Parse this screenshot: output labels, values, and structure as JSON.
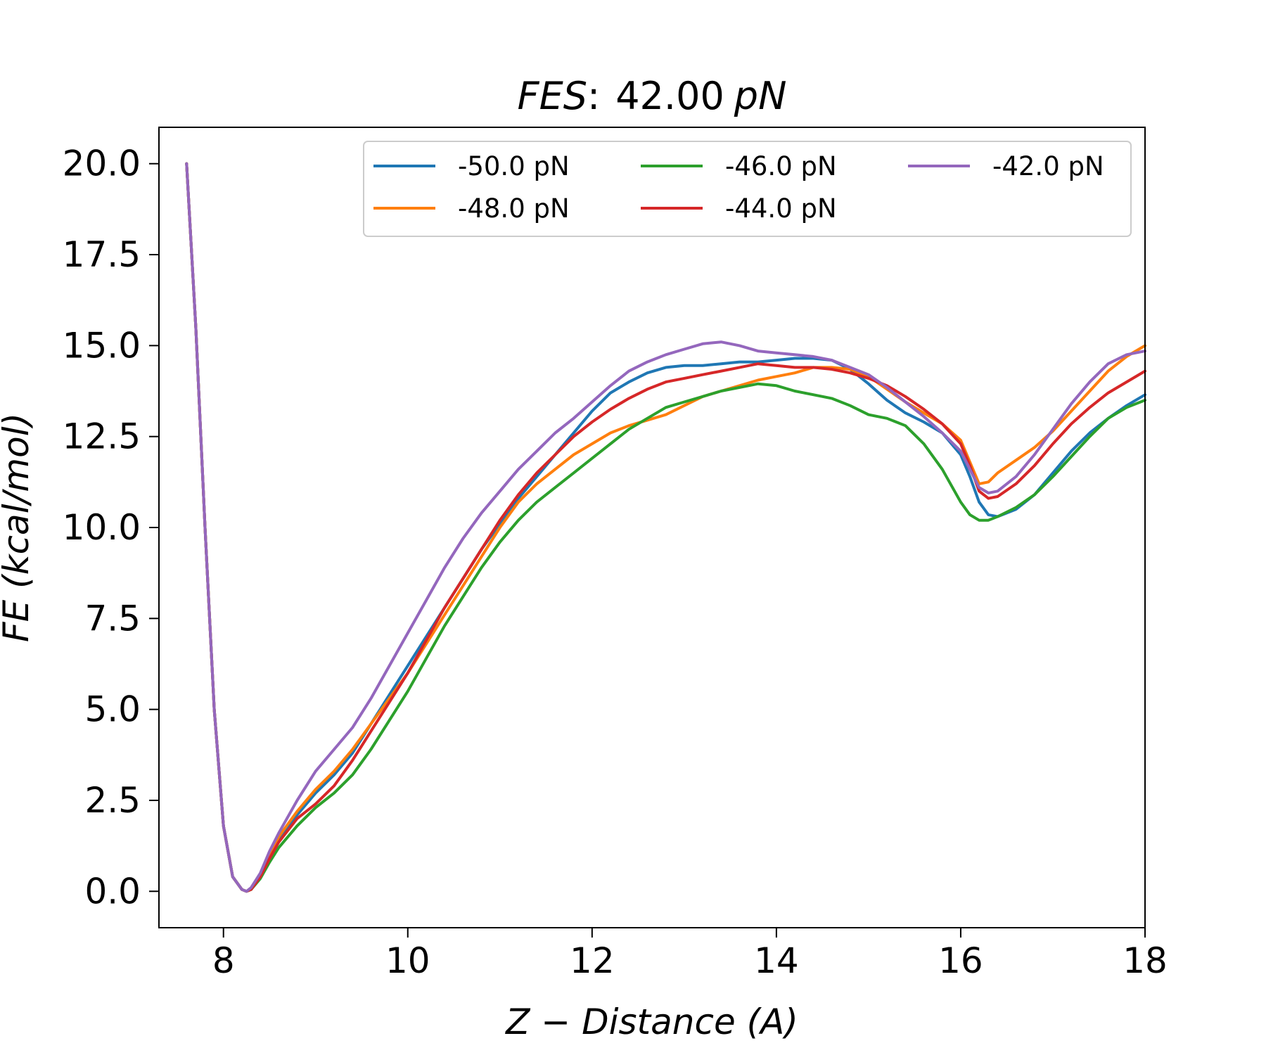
{
  "chart_data": {
    "type": "line",
    "title_parts": {
      "italic_prefix": "FES",
      "colon": ":",
      "number": "42.00",
      "italic_unit": "pN"
    },
    "xlabel": "Z − Distance (A)",
    "ylabel": "FE (kcal/mol)",
    "xlim": [
      7.3,
      18.0
    ],
    "ylim": [
      -1.0,
      21.0
    ],
    "xticks": [
      8,
      10,
      12,
      14,
      16,
      18
    ],
    "xtick_labels": [
      "8",
      "10",
      "12",
      "14",
      "16",
      "18"
    ],
    "yticks": [
      0.0,
      2.5,
      5.0,
      7.5,
      10.0,
      12.5,
      15.0,
      17.5,
      20.0
    ],
    "ytick_labels": [
      "0.0",
      "2.5",
      "5.0",
      "7.5",
      "10.0",
      "12.5",
      "15.0",
      "17.5",
      "20.0"
    ],
    "grid": false,
    "legend_position": "top-right",
    "legend_columns": 3,
    "series": [
      {
        "name": "-50.0 pN",
        "color": "#1f77b4",
        "x": [
          7.6,
          7.7,
          7.8,
          7.9,
          8.0,
          8.1,
          8.2,
          8.25,
          8.3,
          8.4,
          8.5,
          8.6,
          8.8,
          9.0,
          9.2,
          9.4,
          9.6,
          9.8,
          10.0,
          10.2,
          10.4,
          10.6,
          10.8,
          11.0,
          11.2,
          11.4,
          11.6,
          11.8,
          12.0,
          12.2,
          12.4,
          12.6,
          12.8,
          13.0,
          13.2,
          13.4,
          13.6,
          13.8,
          14.0,
          14.2,
          14.4,
          14.6,
          14.8,
          15.0,
          15.2,
          15.4,
          15.6,
          15.8,
          16.0,
          16.1,
          16.2,
          16.3,
          16.4,
          16.6,
          16.8,
          17.0,
          17.2,
          17.4,
          17.6,
          17.8,
          18.0
        ],
        "y": [
          20.0,
          15.5,
          10.0,
          5.0,
          1.8,
          0.4,
          0.05,
          0.0,
          0.05,
          0.4,
          0.9,
          1.4,
          2.1,
          2.7,
          3.2,
          3.8,
          4.6,
          5.4,
          6.2,
          7.0,
          7.8,
          8.6,
          9.4,
          10.1,
          10.8,
          11.4,
          12.0,
          12.6,
          13.2,
          13.7,
          14.0,
          14.25,
          14.4,
          14.45,
          14.45,
          14.5,
          14.55,
          14.55,
          14.6,
          14.65,
          14.65,
          14.6,
          14.35,
          13.95,
          13.5,
          13.15,
          12.9,
          12.6,
          12.0,
          11.4,
          10.7,
          10.35,
          10.3,
          10.5,
          10.9,
          11.5,
          12.1,
          12.6,
          13.0,
          13.35,
          13.65
        ]
      },
      {
        "name": "-48.0 pN",
        "color": "#ff7f0e",
        "x": [
          7.6,
          7.7,
          7.8,
          7.9,
          8.0,
          8.1,
          8.2,
          8.25,
          8.3,
          8.4,
          8.5,
          8.6,
          8.8,
          9.0,
          9.2,
          9.4,
          9.6,
          9.8,
          10.0,
          10.2,
          10.4,
          10.6,
          10.8,
          11.0,
          11.2,
          11.4,
          11.6,
          11.8,
          12.0,
          12.2,
          12.4,
          12.6,
          12.8,
          13.0,
          13.2,
          13.4,
          13.6,
          13.8,
          14.0,
          14.2,
          14.4,
          14.6,
          14.8,
          15.0,
          15.2,
          15.4,
          15.6,
          15.8,
          16.0,
          16.1,
          16.2,
          16.3,
          16.4,
          16.6,
          16.8,
          17.0,
          17.2,
          17.4,
          17.6,
          17.8,
          18.0
        ],
        "y": [
          20.0,
          15.5,
          10.0,
          5.0,
          1.8,
          0.4,
          0.05,
          0.0,
          0.05,
          0.45,
          0.95,
          1.5,
          2.2,
          2.8,
          3.3,
          3.9,
          4.6,
          5.3,
          6.0,
          6.8,
          7.6,
          8.4,
          9.2,
          10.0,
          10.7,
          11.2,
          11.6,
          12.0,
          12.3,
          12.6,
          12.8,
          12.95,
          13.1,
          13.35,
          13.6,
          13.75,
          13.9,
          14.05,
          14.15,
          14.25,
          14.4,
          14.4,
          14.35,
          14.15,
          13.8,
          13.45,
          13.15,
          12.85,
          12.4,
          11.8,
          11.2,
          11.25,
          11.5,
          11.85,
          12.2,
          12.65,
          13.2,
          13.75,
          14.3,
          14.7,
          15.0
        ]
      },
      {
        "name": "-46.0 pN",
        "color": "#2ca02c",
        "x": [
          7.6,
          7.7,
          7.8,
          7.9,
          8.0,
          8.1,
          8.2,
          8.25,
          8.3,
          8.4,
          8.5,
          8.6,
          8.8,
          9.0,
          9.2,
          9.4,
          9.6,
          9.8,
          10.0,
          10.2,
          10.4,
          10.6,
          10.8,
          11.0,
          11.2,
          11.4,
          11.6,
          11.8,
          12.0,
          12.2,
          12.4,
          12.6,
          12.8,
          13.0,
          13.2,
          13.4,
          13.6,
          13.8,
          14.0,
          14.2,
          14.4,
          14.6,
          14.8,
          15.0,
          15.2,
          15.4,
          15.6,
          15.8,
          16.0,
          16.1,
          16.2,
          16.3,
          16.4,
          16.6,
          16.8,
          17.0,
          17.2,
          17.4,
          17.6,
          17.8,
          18.0
        ],
        "y": [
          20.0,
          15.5,
          10.0,
          5.0,
          1.8,
          0.4,
          0.05,
          0.0,
          0.05,
          0.35,
          0.8,
          1.2,
          1.8,
          2.3,
          2.7,
          3.2,
          3.9,
          4.7,
          5.5,
          6.4,
          7.3,
          8.1,
          8.9,
          9.6,
          10.2,
          10.7,
          11.1,
          11.5,
          11.9,
          12.3,
          12.7,
          13.0,
          13.3,
          13.45,
          13.6,
          13.75,
          13.85,
          13.95,
          13.9,
          13.75,
          13.65,
          13.55,
          13.35,
          13.1,
          13.0,
          12.8,
          12.3,
          11.6,
          10.7,
          10.35,
          10.2,
          10.2,
          10.3,
          10.55,
          10.9,
          11.4,
          11.95,
          12.5,
          13.0,
          13.3,
          13.5
        ]
      },
      {
        "name": "-44.0 pN",
        "color": "#d62728",
        "x": [
          7.6,
          7.7,
          7.8,
          7.9,
          8.0,
          8.1,
          8.2,
          8.25,
          8.3,
          8.4,
          8.5,
          8.6,
          8.8,
          9.0,
          9.2,
          9.4,
          9.6,
          9.8,
          10.0,
          10.2,
          10.4,
          10.6,
          10.8,
          11.0,
          11.2,
          11.4,
          11.6,
          11.8,
          12.0,
          12.2,
          12.4,
          12.6,
          12.8,
          13.0,
          13.2,
          13.4,
          13.6,
          13.8,
          14.0,
          14.2,
          14.4,
          14.6,
          14.8,
          15.0,
          15.2,
          15.4,
          15.6,
          15.8,
          16.0,
          16.1,
          16.2,
          16.3,
          16.4,
          16.6,
          16.8,
          17.0,
          17.2,
          17.4,
          17.6,
          17.8,
          18.0
        ],
        "y": [
          20.0,
          15.5,
          10.0,
          5.0,
          1.8,
          0.4,
          0.05,
          0.0,
          0.05,
          0.4,
          0.9,
          1.35,
          2.0,
          2.4,
          2.9,
          3.6,
          4.4,
          5.2,
          6.0,
          6.9,
          7.8,
          8.6,
          9.4,
          10.2,
          10.9,
          11.5,
          12.0,
          12.5,
          12.9,
          13.25,
          13.55,
          13.8,
          14.0,
          14.1,
          14.2,
          14.3,
          14.4,
          14.5,
          14.45,
          14.4,
          14.4,
          14.35,
          14.25,
          14.1,
          13.9,
          13.6,
          13.25,
          12.85,
          12.3,
          11.7,
          11.0,
          10.8,
          10.85,
          11.2,
          11.7,
          12.3,
          12.85,
          13.3,
          13.7,
          14.0,
          14.3
        ]
      },
      {
        "name": "-42.0 pN",
        "color": "#9467bd",
        "x": [
          7.6,
          7.7,
          7.8,
          7.9,
          8.0,
          8.1,
          8.2,
          8.25,
          8.3,
          8.4,
          8.5,
          8.6,
          8.8,
          9.0,
          9.2,
          9.4,
          9.6,
          9.8,
          10.0,
          10.2,
          10.4,
          10.6,
          10.8,
          11.0,
          11.2,
          11.4,
          11.6,
          11.8,
          12.0,
          12.2,
          12.4,
          12.6,
          12.8,
          13.0,
          13.2,
          13.4,
          13.6,
          13.8,
          14.0,
          14.2,
          14.4,
          14.6,
          14.8,
          15.0,
          15.2,
          15.4,
          15.6,
          15.8,
          16.0,
          16.1,
          16.2,
          16.3,
          16.4,
          16.6,
          16.8,
          17.0,
          17.2,
          17.4,
          17.6,
          17.8,
          18.0
        ],
        "y": [
          20.0,
          15.5,
          10.0,
          5.0,
          1.8,
          0.4,
          0.05,
          0.0,
          0.1,
          0.5,
          1.1,
          1.6,
          2.5,
          3.3,
          3.9,
          4.5,
          5.3,
          6.2,
          7.1,
          8.0,
          8.9,
          9.7,
          10.4,
          11.0,
          11.6,
          12.1,
          12.6,
          13.0,
          13.45,
          13.9,
          14.3,
          14.55,
          14.75,
          14.9,
          15.05,
          15.1,
          15.0,
          14.85,
          14.8,
          14.75,
          14.7,
          14.6,
          14.4,
          14.2,
          13.85,
          13.45,
          13.05,
          12.6,
          12.1,
          11.6,
          11.1,
          10.95,
          11.0,
          11.4,
          12.0,
          12.7,
          13.4,
          14.0,
          14.5,
          14.75,
          14.85
        ]
      }
    ]
  }
}
